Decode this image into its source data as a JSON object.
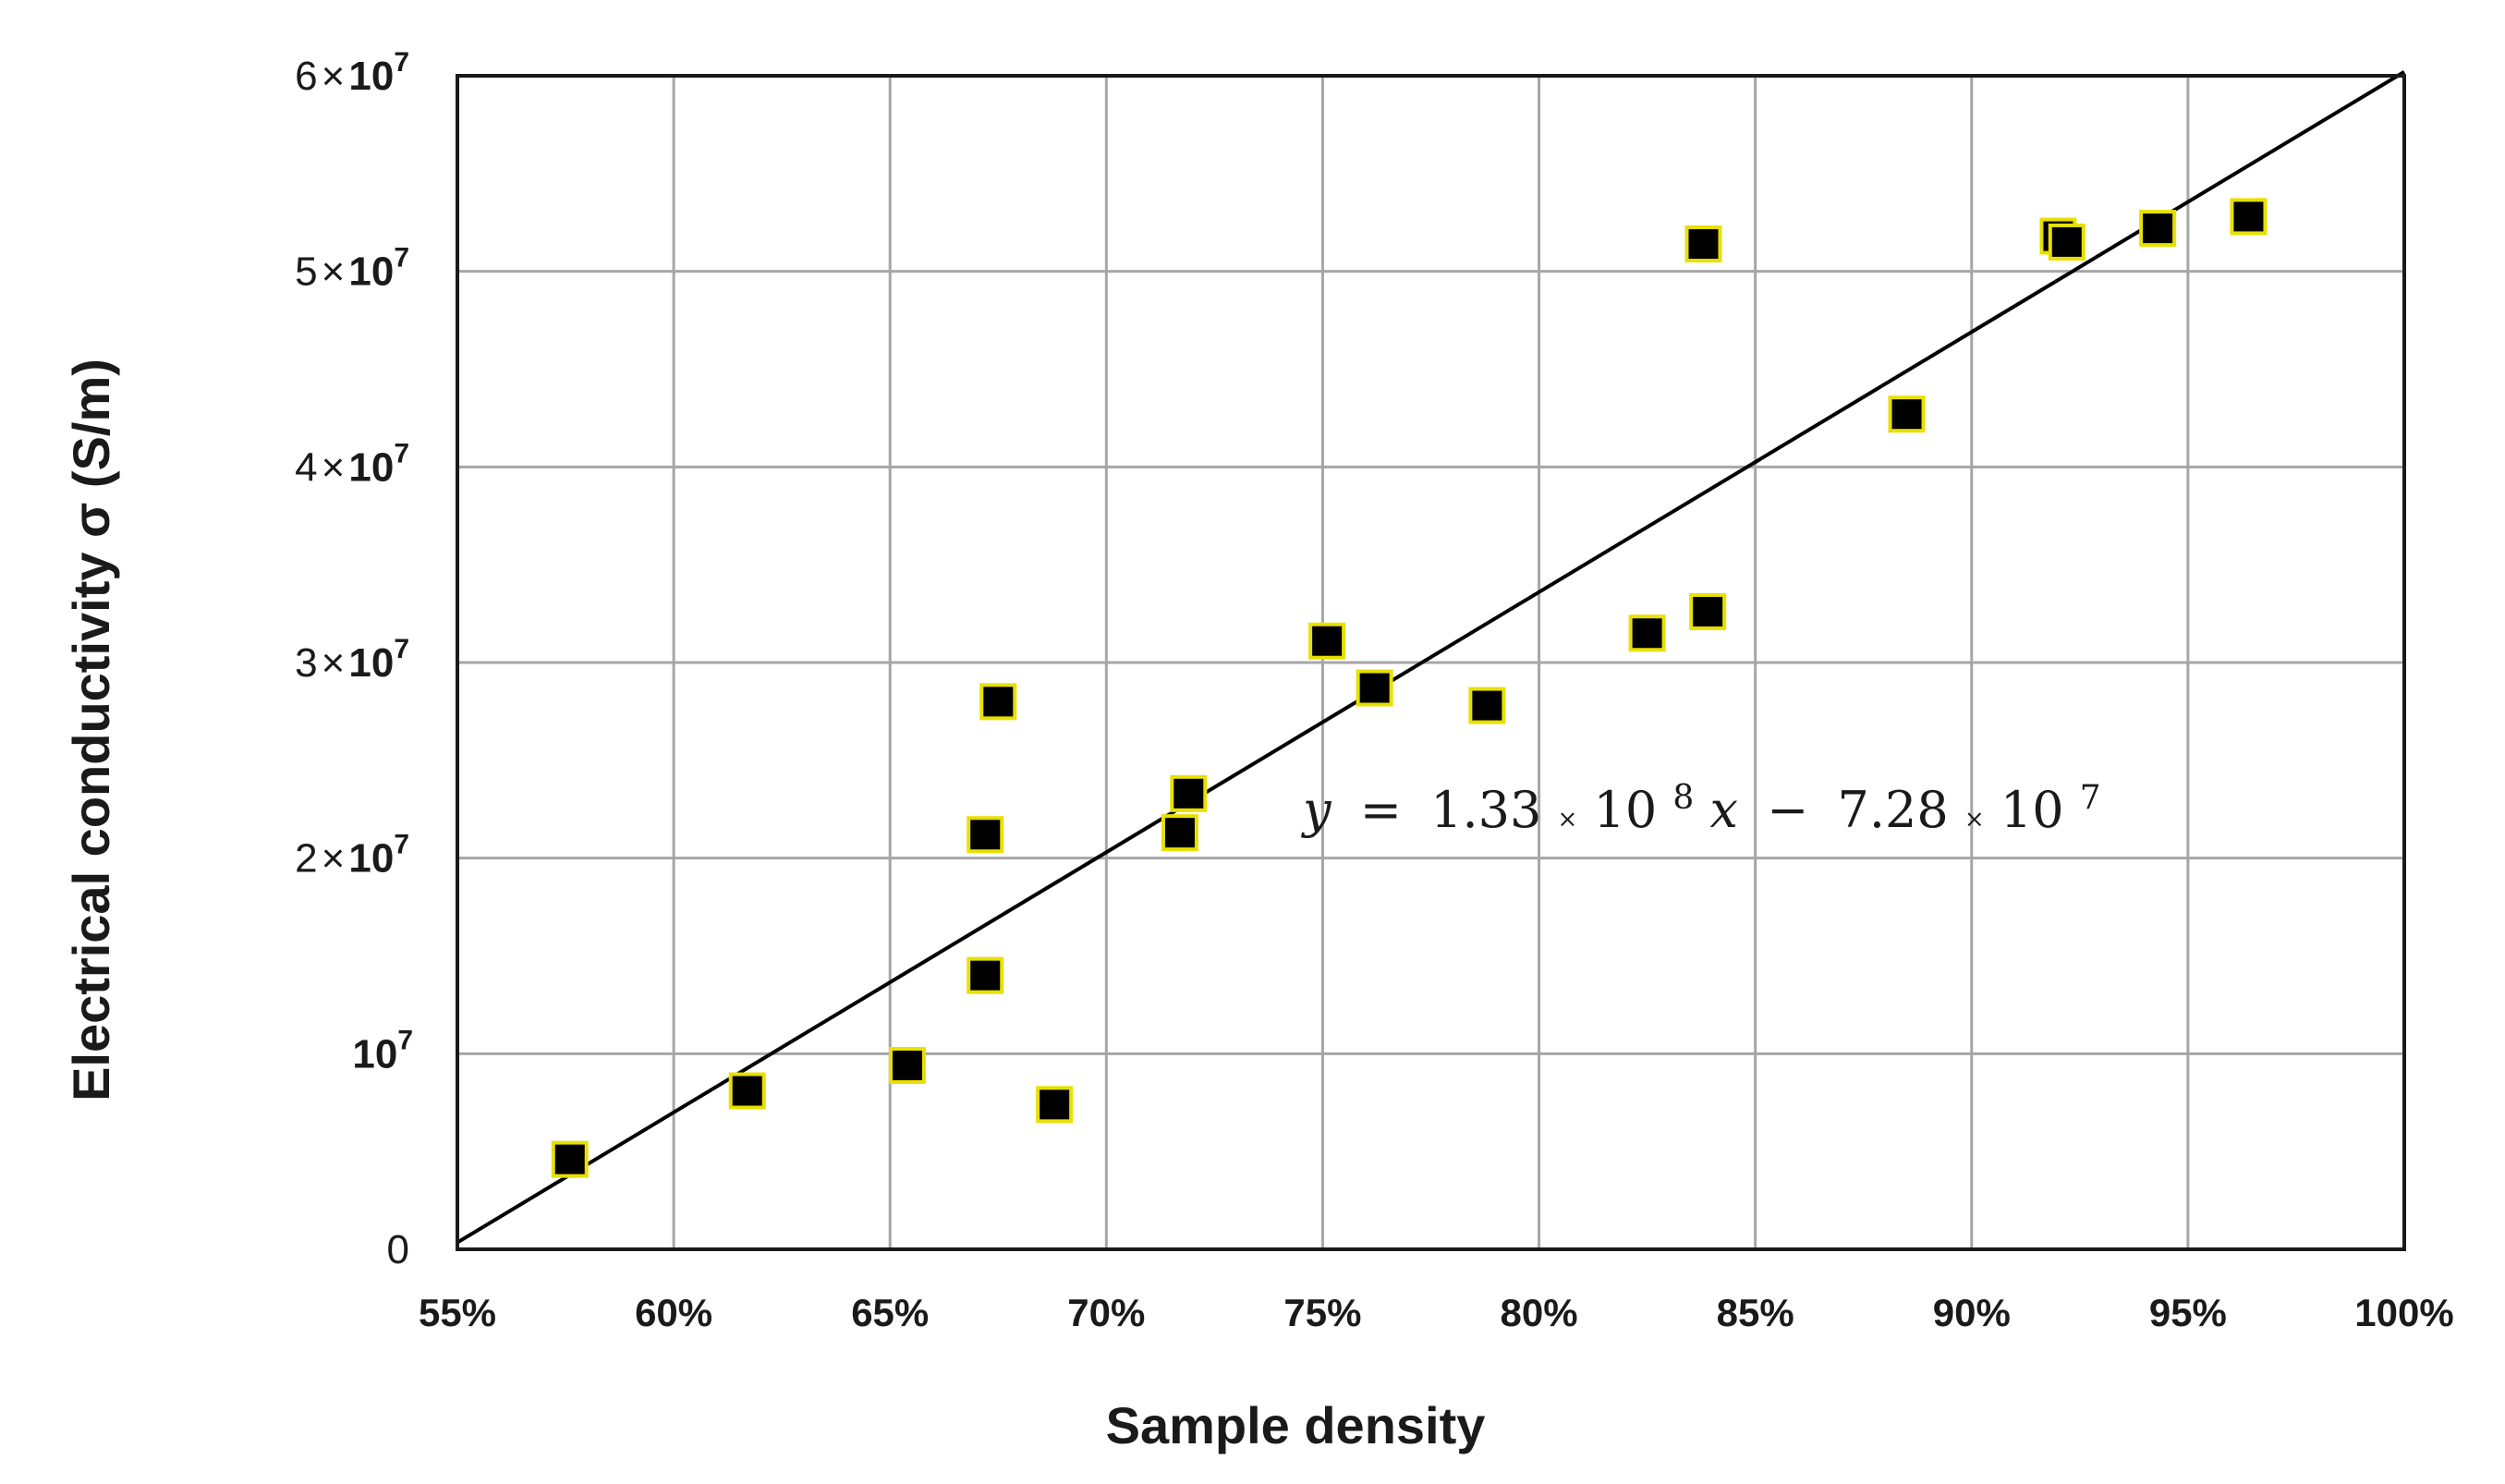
{
  "chart_data": {
    "type": "scatter",
    "title": "",
    "xlabel": "Sample density",
    "ylabel": "Electrical conductivity σ (S/m)",
    "xlim": [
      0.55,
      1.0
    ],
    "ylim": [
      0,
      60000000
    ],
    "grid": true,
    "x_ticks": [
      {
        "value": 0.55,
        "label": "55%"
      },
      {
        "value": 0.6,
        "label": "60%"
      },
      {
        "value": 0.65,
        "label": "65%"
      },
      {
        "value": 0.7,
        "label": "70%"
      },
      {
        "value": 0.75,
        "label": "75%"
      },
      {
        "value": 0.8,
        "label": "80%"
      },
      {
        "value": 0.85,
        "label": "85%"
      },
      {
        "value": 0.9,
        "label": "90%"
      },
      {
        "value": 0.95,
        "label": "95%"
      },
      {
        "value": 1.0,
        "label": "100%"
      }
    ],
    "y_ticks": [
      {
        "value": 0,
        "base": "0",
        "times": "",
        "power": "",
        "exp": ""
      },
      {
        "value": 10000000,
        "base": "",
        "times": "",
        "power": "10",
        "exp": "7"
      },
      {
        "value": 20000000,
        "base": "2",
        "times": "×",
        "power": "10",
        "exp": "7"
      },
      {
        "value": 30000000,
        "base": "3",
        "times": "×",
        "power": "10",
        "exp": "7"
      },
      {
        "value": 40000000,
        "base": "4",
        "times": "×",
        "power": "10",
        "exp": "7"
      },
      {
        "value": 50000000,
        "base": "5",
        "times": "×",
        "power": "10",
        "exp": "7"
      },
      {
        "value": 60000000,
        "base": "6",
        "times": "×",
        "power": "10",
        "exp": "7"
      }
    ],
    "series": [
      {
        "marker": "square",
        "marker_color": "#000000",
        "marker_edge": "#e8e000",
        "points": [
          {
            "x": 0.576,
            "y": 4600000
          },
          {
            "x": 0.617,
            "y": 8100000
          },
          {
            "x": 0.654,
            "y": 9400000
          },
          {
            "x": 0.672,
            "y": 21200000
          },
          {
            "x": 0.672,
            "y": 14000000
          },
          {
            "x": 0.675,
            "y": 28000000
          },
          {
            "x": 0.688,
            "y": 7400000
          },
          {
            "x": 0.717,
            "y": 21300000
          },
          {
            "x": 0.719,
            "y": 23300000
          },
          {
            "x": 0.751,
            "y": 31100000
          },
          {
            "x": 0.762,
            "y": 28700000
          },
          {
            "x": 0.788,
            "y": 27800000
          },
          {
            "x": 0.825,
            "y": 31500000
          },
          {
            "x": 0.838,
            "y": 51400000
          },
          {
            "x": 0.839,
            "y": 32600000
          },
          {
            "x": 0.885,
            "y": 42700000
          },
          {
            "x": 0.92,
            "y": 51800000
          },
          {
            "x": 0.922,
            "y": 51500000
          },
          {
            "x": 0.943,
            "y": 52200000
          },
          {
            "x": 0.964,
            "y": 52800000
          }
        ]
      }
    ],
    "fit_line": {
      "slope": 133000000,
      "intercept": -72800000,
      "x_range": [
        0.55,
        1.0
      ]
    },
    "annotation": {
      "y_var": "y",
      "eq": "=",
      "slope_coef": "1.33",
      "times": "×",
      "ten": "10",
      "slope_exp": "8",
      "x_var": "x",
      "minus": "−",
      "int_coef": "7.28",
      "int_exp": "7"
    }
  }
}
